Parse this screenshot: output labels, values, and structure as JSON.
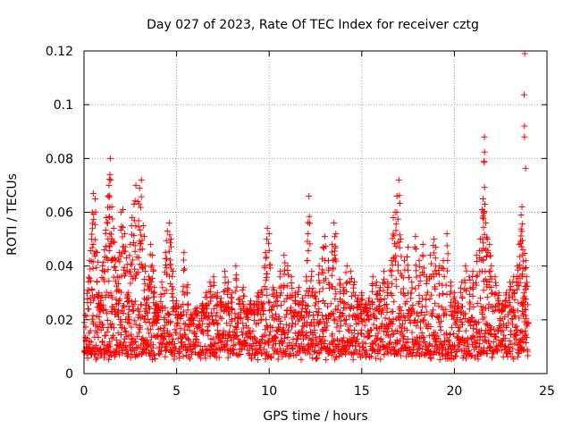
{
  "chart_data": {
    "type": "scatter",
    "title": "Day 027 of 2023, Rate Of TEC Index for receiver cztg",
    "xlabel": "GPS time / hours",
    "ylabel": "ROTI / TECUs",
    "xlim": [
      0,
      25
    ],
    "ylim": [
      0,
      0.12
    ],
    "xticks": [
      0,
      5,
      10,
      15,
      20,
      25
    ],
    "xtick_labels": [
      "0",
      "5",
      "10",
      "15",
      "20",
      "25"
    ],
    "yticks": [
      0,
      0.02,
      0.04,
      0.06,
      0.08,
      0.1,
      0.12
    ],
    "ytick_labels": [
      "0",
      "0.02",
      "0.04",
      "0.06",
      "0.08",
      "0.1",
      "0.12"
    ],
    "grid": true,
    "marker": "+",
    "marker_color": "#ff0000",
    "baseline_band": {
      "x_range": [
        0,
        24
      ],
      "typical_low": 0.005,
      "typical_high": 0.02,
      "samples_per_hour": 70
    },
    "series": [
      {
        "name": "ROTI",
        "points": [
          [
            0.1,
            0.012
          ],
          [
            0.2,
            0.031
          ],
          [
            0.3,
            0.042
          ],
          [
            0.4,
            0.05
          ],
          [
            0.45,
            0.06
          ],
          [
            0.5,
            0.067
          ],
          [
            0.6,
            0.065
          ],
          [
            0.7,
            0.045
          ],
          [
            0.8,
            0.03
          ],
          [
            0.9,
            0.028
          ],
          [
            1.0,
            0.04
          ],
          [
            1.1,
            0.046
          ],
          [
            1.2,
            0.058
          ],
          [
            1.3,
            0.066
          ],
          [
            1.35,
            0.07
          ],
          [
            1.4,
            0.074
          ],
          [
            1.42,
            0.08
          ],
          [
            1.5,
            0.062
          ],
          [
            1.6,
            0.054
          ],
          [
            1.7,
            0.042
          ],
          [
            1.8,
            0.036
          ],
          [
            1.9,
            0.045
          ],
          [
            2.0,
            0.06
          ],
          [
            2.1,
            0.061
          ],
          [
            2.2,
            0.052
          ],
          [
            2.3,
            0.043
          ],
          [
            2.4,
            0.03
          ],
          [
            2.5,
            0.048
          ],
          [
            2.6,
            0.058
          ],
          [
            2.7,
            0.063
          ],
          [
            2.8,
            0.07
          ],
          [
            2.9,
            0.064
          ],
          [
            3.0,
            0.069
          ],
          [
            3.1,
            0.072
          ],
          [
            3.2,
            0.055
          ],
          [
            3.3,
            0.04
          ],
          [
            3.4,
            0.028
          ],
          [
            3.5,
            0.036
          ],
          [
            3.6,
            0.048
          ],
          [
            3.7,
            0.044
          ],
          [
            3.8,
            0.032
          ],
          [
            3.9,
            0.026
          ],
          [
            4.0,
            0.025
          ],
          [
            4.2,
            0.034
          ],
          [
            4.4,
            0.045
          ],
          [
            4.5,
            0.053
          ],
          [
            4.6,
            0.056
          ],
          [
            4.7,
            0.05
          ],
          [
            4.8,
            0.038
          ],
          [
            5.0,
            0.027
          ],
          [
            5.2,
            0.022
          ],
          [
            5.4,
            0.045
          ],
          [
            5.6,
            0.033
          ],
          [
            5.8,
            0.021
          ],
          [
            6.0,
            0.024
          ],
          [
            6.2,
            0.018
          ],
          [
            6.4,
            0.026
          ],
          [
            6.6,
            0.03
          ],
          [
            6.8,
            0.034
          ],
          [
            7.0,
            0.036
          ],
          [
            7.2,
            0.03
          ],
          [
            7.4,
            0.028
          ],
          [
            7.6,
            0.038
          ],
          [
            7.8,
            0.034
          ],
          [
            8.0,
            0.03
          ],
          [
            8.2,
            0.04
          ],
          [
            8.4,
            0.028
          ],
          [
            8.6,
            0.032
          ],
          [
            8.8,
            0.024
          ],
          [
            9.0,
            0.027
          ],
          [
            9.2,
            0.026
          ],
          [
            9.4,
            0.03
          ],
          [
            9.6,
            0.031
          ],
          [
            9.8,
            0.045
          ],
          [
            9.9,
            0.054
          ],
          [
            10.0,
            0.052
          ],
          [
            10.2,
            0.032
          ],
          [
            10.4,
            0.03
          ],
          [
            10.6,
            0.038
          ],
          [
            10.8,
            0.044
          ],
          [
            11.0,
            0.04
          ],
          [
            11.2,
            0.036
          ],
          [
            11.4,
            0.03
          ],
          [
            11.6,
            0.032
          ],
          [
            11.8,
            0.028
          ],
          [
            12.0,
            0.036
          ],
          [
            12.1,
            0.052
          ],
          [
            12.15,
            0.066
          ],
          [
            12.3,
            0.038
          ],
          [
            12.5,
            0.03
          ],
          [
            12.7,
            0.04
          ],
          [
            12.9,
            0.047
          ],
          [
            13.0,
            0.051
          ],
          [
            13.2,
            0.042
          ],
          [
            13.4,
            0.048
          ],
          [
            13.5,
            0.056
          ],
          [
            13.6,
            0.052
          ],
          [
            13.8,
            0.035
          ],
          [
            14.0,
            0.032
          ],
          [
            14.2,
            0.04
          ],
          [
            14.4,
            0.038
          ],
          [
            14.6,
            0.034
          ],
          [
            14.8,
            0.028
          ],
          [
            15.0,
            0.03
          ],
          [
            15.2,
            0.026
          ],
          [
            15.4,
            0.028
          ],
          [
            15.6,
            0.036
          ],
          [
            15.8,
            0.034
          ],
          [
            16.0,
            0.032
          ],
          [
            16.2,
            0.038
          ],
          [
            16.4,
            0.034
          ],
          [
            16.6,
            0.042
          ],
          [
            16.7,
            0.058
          ],
          [
            16.8,
            0.06
          ],
          [
            16.9,
            0.066
          ],
          [
            17.0,
            0.072
          ],
          [
            17.1,
            0.05
          ],
          [
            17.3,
            0.042
          ],
          [
            17.5,
            0.047
          ],
          [
            17.7,
            0.034
          ],
          [
            17.9,
            0.051
          ],
          [
            18.1,
            0.042
          ],
          [
            18.3,
            0.048
          ],
          [
            18.5,
            0.036
          ],
          [
            18.7,
            0.044
          ],
          [
            18.9,
            0.05
          ],
          [
            19.0,
            0.047
          ],
          [
            19.2,
            0.04
          ],
          [
            19.4,
            0.042
          ],
          [
            19.6,
            0.052
          ],
          [
            19.8,
            0.034
          ],
          [
            20.0,
            0.03
          ],
          [
            20.2,
            0.026
          ],
          [
            20.4,
            0.034
          ],
          [
            20.6,
            0.04
          ],
          [
            20.8,
            0.036
          ],
          [
            21.0,
            0.038
          ],
          [
            21.2,
            0.044
          ],
          [
            21.4,
            0.05
          ],
          [
            21.5,
            0.061
          ],
          [
            21.55,
            0.065
          ],
          [
            21.6,
            0.079
          ],
          [
            21.62,
            0.088
          ],
          [
            21.7,
            0.056
          ],
          [
            21.8,
            0.05
          ],
          [
            21.9,
            0.048
          ],
          [
            22.0,
            0.04
          ],
          [
            22.2,
            0.036
          ],
          [
            22.4,
            0.03
          ],
          [
            22.6,
            0.026
          ],
          [
            22.8,
            0.03
          ],
          [
            23.0,
            0.034
          ],
          [
            23.2,
            0.036
          ],
          [
            23.4,
            0.04
          ],
          [
            23.5,
            0.048
          ],
          [
            23.6,
            0.059
          ],
          [
            23.65,
            0.062
          ],
          [
            23.7,
            0.046
          ],
          [
            23.75,
            0.03
          ],
          [
            23.8,
            0.119
          ],
          [
            23.85,
            0.042
          ],
          [
            23.9,
            0.036
          ]
        ]
      }
    ]
  }
}
